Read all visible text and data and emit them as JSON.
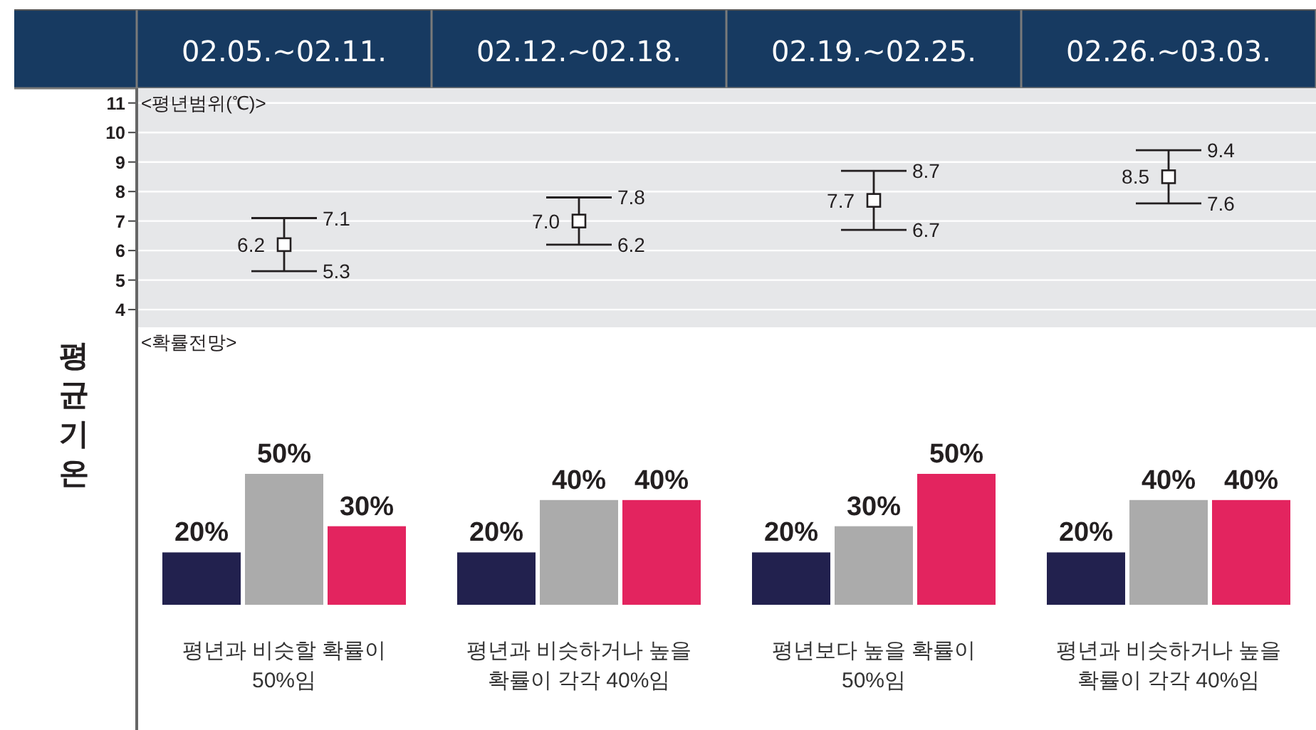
{
  "chart_data": [
    {
      "type": "scatter",
      "title": "<평년범위(℃)>",
      "ylabel": "평균기온",
      "categories": [
        "02.05.~02.11.",
        "02.12.~02.18.",
        "02.19.~02.25.",
        "02.26.~03.03."
      ],
      "values": [
        6.2,
        7.0,
        7.7,
        8.5
      ],
      "value_labels": [
        "6.2",
        "7.0",
        "7.7",
        "8.5"
      ],
      "errors": [
        [
          5.3,
          7.1
        ],
        [
          6.2,
          7.8
        ],
        [
          6.7,
          8.7
        ],
        [
          7.6,
          9.4
        ]
      ],
      "color": "#231f20",
      "marker": "square",
      "ylim": [
        3.4,
        11.5
      ],
      "yticks": [
        4,
        5,
        6,
        7,
        8,
        9,
        10,
        11
      ],
      "grid": "y",
      "annotations": [
        {
          "text": "7.1",
          "x": "02.05.~02.11.",
          "y": 7.1
        },
        {
          "text": "5.3",
          "x": "02.05.~02.11.",
          "y": 5.3
        },
        {
          "text": "7.8",
          "x": "02.12.~02.18.",
          "y": 7.8
        },
        {
          "text": "6.2",
          "x": "02.12.~02.18.",
          "y": 6.2
        },
        {
          "text": "8.7",
          "x": "02.19.~02.25.",
          "y": 8.7
        },
        {
          "text": "6.7",
          "x": "02.19.~02.25.",
          "y": 6.7
        },
        {
          "text": "9.4",
          "x": "02.26.~03.03.",
          "y": 9.4
        },
        {
          "text": "7.6",
          "x": "02.26.~03.03.",
          "y": 7.6
        }
      ]
    },
    {
      "type": "bar",
      "title": "<확률전망>",
      "categories": [
        null,
        null,
        null,
        null
      ],
      "series": [
        {
          "color": "#22214e",
          "values": [
            20,
            20,
            20,
            20
          ],
          "value_labels": [
            "20%",
            "20%",
            "20%",
            "20%"
          ]
        },
        {
          "color": "#ababab",
          "values": [
            50,
            40,
            30,
            40
          ],
          "value_labels": [
            "50%",
            "40%",
            "30%",
            "40%"
          ]
        },
        {
          "color": "#e3245f",
          "values": [
            30,
            40,
            50,
            40
          ],
          "value_labels": [
            "30%",
            "40%",
            "50%",
            "40%"
          ]
        }
      ],
      "annotations": [
        "평년과 비슷할 확률이\n50%임",
        "평년과 비슷하거나 높을\n확률이 각각 40%임",
        "평년보다 높을 확률이\n50%임",
        "평년과 비슷하거나 높을\n확률이 각각 40%임"
      ]
    }
  ]
}
